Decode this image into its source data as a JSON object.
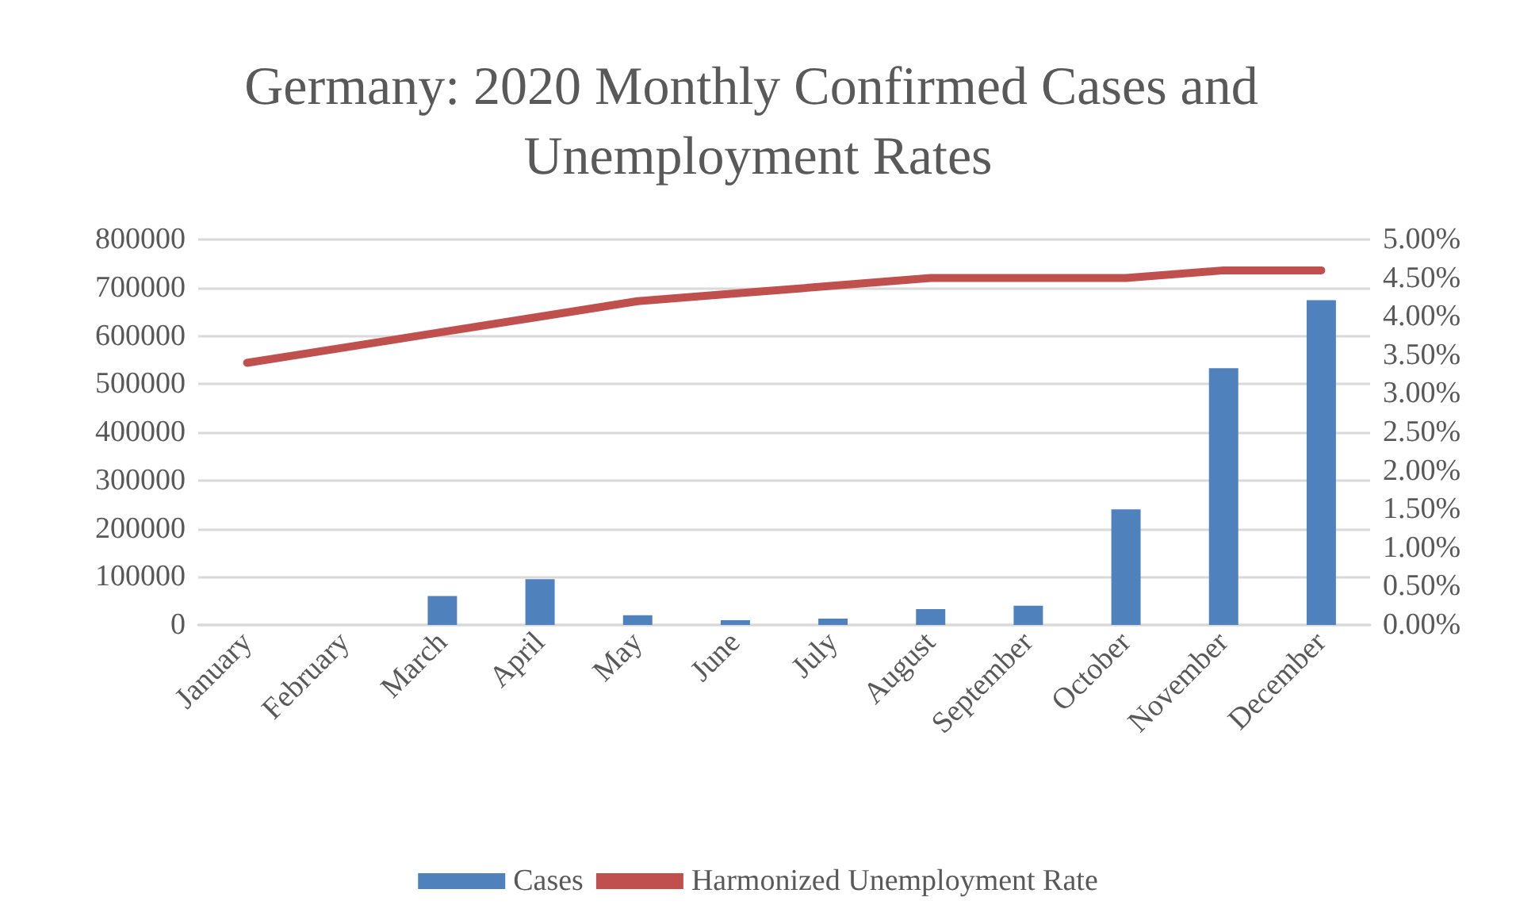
{
  "chart_data": {
    "type": "bar",
    "title": "Germany: 2020 Monthly Confirmed Cases and Unemployment Rates",
    "categories": [
      "January",
      "February",
      "March",
      "April",
      "May",
      "June",
      "July",
      "August",
      "September",
      "October",
      "November",
      "December"
    ],
    "series": [
      {
        "name": "Cases",
        "color": "#4f81bd",
        "values": [
          0,
          0,
          60000,
          95000,
          20000,
          10000,
          13000,
          33000,
          40000,
          240000,
          533000,
          674000
        ]
      },
      {
        "name": "Harmonized Unemployment Rate",
        "type": "line",
        "axis": "y2",
        "color": "#c0504d",
        "values": [
          3.4,
          3.6,
          3.8,
          4.0,
          4.2,
          4.3,
          4.4,
          4.5,
          4.5,
          4.5,
          4.6,
          4.6
        ]
      }
    ],
    "ylim": [
      0,
      800000
    ],
    "yticks": [
      0,
      100000,
      200000,
      300000,
      400000,
      500000,
      600000,
      700000,
      800000
    ],
    "y2lim": [
      0,
      5
    ],
    "y2ticks": [
      {
        "value": 0,
        "label": "0.00%"
      },
      {
        "value": 0.5,
        "label": "0.50%"
      },
      {
        "value": 1,
        "label": "1.00%"
      },
      {
        "value": 1.5,
        "label": "1.50%"
      },
      {
        "value": 2,
        "label": "2.00%"
      },
      {
        "value": 2.5,
        "label": "2.50%"
      },
      {
        "value": 3,
        "label": "3.00%"
      },
      {
        "value": 3.5,
        "label": "3.50%"
      },
      {
        "value": 4,
        "label": "4.00%"
      },
      {
        "value": 4.5,
        "label": "4.50%"
      },
      {
        "value": 5,
        "label": "5.00%"
      }
    ],
    "grid": "y",
    "legend": "bottom",
    "marker": "none",
    "line_style": "solid"
  }
}
